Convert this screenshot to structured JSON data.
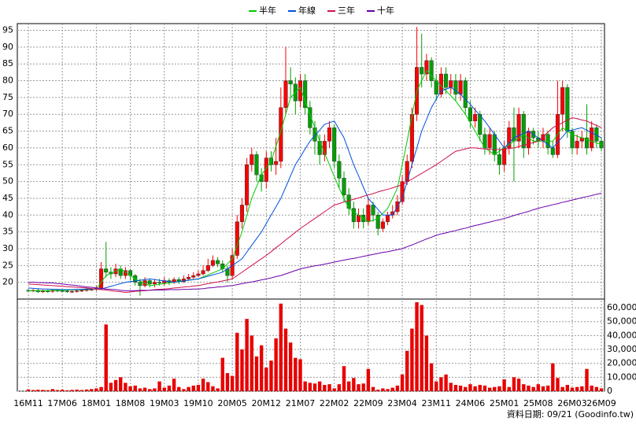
{
  "chart_data": {
    "type": "candlestick",
    "legend_position": "top",
    "grid": true,
    "up_color": "#ff0000",
    "down_color": "#00a000",
    "note": "資料日期: 09/21  (Goodinfo.tw)",
    "categories": [
      "16M11",
      null,
      null,
      null,
      null,
      null,
      null,
      "17M06",
      null,
      null,
      null,
      null,
      null,
      null,
      "18M01",
      null,
      null,
      null,
      null,
      null,
      null,
      "18M08",
      null,
      null,
      null,
      null,
      null,
      null,
      "19M03",
      null,
      null,
      null,
      null,
      null,
      null,
      "19M10",
      null,
      null,
      null,
      null,
      null,
      null,
      "20M05",
      null,
      null,
      null,
      null,
      null,
      null,
      "20M12",
      null,
      null,
      null,
      null,
      null,
      null,
      "21M07",
      null,
      null,
      null,
      null,
      null,
      null,
      "22M02",
      null,
      null,
      null,
      null,
      null,
      null,
      "22M09",
      null,
      null,
      null,
      null,
      null,
      null,
      "23M04",
      null,
      null,
      null,
      null,
      null,
      null,
      "23M11",
      null,
      null,
      null,
      null,
      null,
      null,
      "24M06",
      null,
      null,
      null,
      null,
      null,
      null,
      "25M01",
      null,
      null,
      null,
      null,
      null,
      null,
      "25M08",
      null,
      null,
      null,
      null,
      null,
      null,
      "26M03",
      null,
      null,
      null,
      null,
      null,
      "26M09"
    ],
    "ylim": [
      15,
      97
    ],
    "yticks": [
      20,
      25,
      30,
      35,
      40,
      45,
      50,
      55,
      60,
      65,
      70,
      75,
      80,
      85,
      90,
      95
    ],
    "open": [
      17.6,
      17.5,
      17.6,
      17.2,
      17.4,
      17.3,
      17.6,
      17.5,
      17.4,
      17.2,
      17.3,
      17.5,
      17.6,
      17.8,
      17.9,
      18.2,
      24,
      23,
      22.5,
      24,
      22,
      23.5,
      22,
      20,
      19,
      20.5,
      19.5,
      20,
      19.8,
      20.5,
      20,
      20.8,
      20.2,
      21,
      21.5,
      22,
      22.5,
      23.5,
      25,
      26.5,
      25.5,
      24,
      22,
      28,
      38,
      43,
      55,
      58,
      52,
      50,
      57,
      55,
      56,
      72,
      80,
      79,
      74,
      80,
      72,
      66,
      62,
      58,
      62,
      66,
      56,
      51,
      46,
      42,
      38,
      40,
      38,
      43,
      40,
      36,
      38,
      40,
      41,
      44,
      50,
      56,
      70,
      84,
      82,
      86,
      80,
      76,
      82,
      78,
      80,
      76,
      80,
      72,
      68,
      70,
      64,
      60,
      64,
      58,
      55,
      60,
      66,
      62,
      70,
      60,
      65,
      63,
      62,
      64,
      60,
      58,
      70,
      78,
      65,
      60,
      62,
      63,
      60,
      66,
      62
    ],
    "high": [
      18,
      18,
      18,
      17.8,
      17.8,
      18,
      18,
      17.9,
      17.8,
      17.7,
      17.9,
      18,
      18.2,
      18.3,
      19,
      26,
      32,
      24.5,
      25.5,
      25,
      24.5,
      24,
      22.5,
      21,
      21.5,
      21,
      21,
      21,
      21.5,
      21.2,
      21.5,
      21.5,
      22,
      22.5,
      23,
      23.5,
      25,
      27,
      28,
      27.5,
      26.5,
      25,
      30,
      40,
      45,
      57,
      60,
      59,
      54,
      59,
      59,
      63,
      78,
      90,
      84,
      81,
      82,
      82,
      74,
      68,
      64,
      64,
      68,
      67,
      58,
      53,
      48,
      44,
      42,
      42,
      45,
      44,
      41,
      39,
      41,
      43,
      46,
      52,
      58,
      72,
      96,
      94,
      88,
      87,
      82,
      84,
      84,
      82,
      82,
      82,
      81,
      74,
      72,
      71,
      66,
      66,
      65,
      60,
      62,
      68,
      72,
      72,
      71,
      66,
      66,
      65,
      66,
      65,
      62,
      80,
      80,
      79,
      66,
      64,
      65,
      73,
      68,
      67,
      63
    ],
    "low": [
      17.1,
      17.1,
      16.8,
      16.8,
      16.9,
      16.9,
      17.1,
      17,
      16.8,
      16.8,
      16.9,
      17.1,
      17.2,
      17.4,
      17.4,
      17.8,
      21.5,
      21,
      21.5,
      21,
      21,
      20.5,
      19,
      16,
      18.5,
      18.5,
      18.5,
      19,
      19,
      19.2,
      19.5,
      19.5,
      19.8,
      20.5,
      21,
      21.5,
      22,
      23,
      24.5,
      24.5,
      23,
      20,
      21,
      27,
      36,
      41,
      53,
      50,
      47,
      48,
      53,
      52,
      54,
      70,
      75,
      70,
      72,
      70,
      64,
      58,
      55,
      56,
      60,
      54,
      48,
      44,
      40,
      36,
      36,
      36,
      37,
      38,
      34,
      35,
      37,
      39,
      40,
      43,
      49,
      54,
      68,
      78,
      80,
      78,
      74,
      75,
      76,
      76,
      74,
      74,
      70,
      66,
      66,
      62,
      58,
      58,
      56,
      52,
      53,
      58,
      50,
      60,
      57,
      58,
      61,
      60,
      60,
      58,
      57,
      57,
      65,
      63,
      58,
      58,
      60,
      58,
      59,
      60,
      59
    ],
    "close": [
      17.5,
      17.6,
      17.2,
      17.4,
      17.3,
      17.6,
      17.5,
      17.4,
      17.2,
      17.3,
      17.5,
      17.6,
      17.8,
      17.9,
      18.2,
      24,
      23,
      22.5,
      24,
      22,
      23.5,
      22,
      20,
      19,
      20.5,
      19.5,
      20,
      19.8,
      20.5,
      20,
      20.8,
      20.2,
      21,
      21.5,
      22,
      22.5,
      23.5,
      25,
      26.5,
      25.5,
      24,
      22,
      28,
      38,
      43,
      55,
      58,
      52,
      50,
      57,
      55,
      56,
      72,
      80,
      79,
      74,
      80,
      72,
      66,
      62,
      58,
      62,
      66,
      56,
      51,
      46,
      42,
      38,
      40,
      38,
      43,
      40,
      36,
      38,
      40,
      41,
      44,
      50,
      56,
      70,
      84,
      82,
      86,
      80,
      76,
      82,
      78,
      80,
      76,
      80,
      72,
      68,
      70,
      64,
      60,
      64,
      58,
      55,
      60,
      66,
      62,
      70,
      60,
      65,
      63,
      62,
      64,
      60,
      58,
      70,
      78,
      65,
      60,
      62,
      63,
      60,
      66,
      62,
      60
    ],
    "series": [
      {
        "name": "半年",
        "color": "#00cc00",
        "values": [
          17.5,
          17.5,
          17.5,
          17.5,
          17.5,
          17.6,
          17.6,
          17.6,
          17.7,
          17.7,
          17.8,
          17.8,
          17.9,
          17.9,
          18,
          20,
          22,
          22.7,
          23.3,
          24,
          23,
          22,
          21,
          20.3,
          19.7,
          19,
          19.2,
          19.4,
          19.6,
          19.8,
          20,
          20.2,
          20.4,
          20.6,
          20.8,
          21,
          21.6,
          22.2,
          22.8,
          23.4,
          24,
          25.5,
          27,
          31,
          35,
          40,
          45,
          48.5,
          52,
          54,
          56,
          60.5,
          65,
          70,
          75,
          76.5,
          78,
          74,
          70,
          66,
          62,
          58.5,
          55,
          51.5,
          48,
          45,
          42,
          41,
          40,
          39,
          38,
          38.5,
          39,
          40.5,
          42,
          45,
          48,
          55,
          62,
          69.5,
          77,
          80,
          83,
          81.5,
          80,
          78.5,
          77,
          75.5,
          74,
          72,
          70,
          67.5,
          65,
          62.5,
          60,
          59,
          58,
          59,
          60,
          61,
          62,
          63,
          64,
          63,
          62,
          62,
          62,
          62,
          62,
          64,
          66,
          65,
          64,
          63.5,
          63,
          62.5,
          62,
          61.5,
          61
        ]
      },
      {
        "name": "年線",
        "color": "#0050e0",
        "values": [
          18.3,
          18.2,
          18.1,
          18,
          18,
          17.9,
          17.9,
          17.8,
          17.8,
          17.8,
          17.9,
          17.9,
          18,
          18,
          18,
          18,
          18.4,
          18.8,
          19.2,
          19.6,
          20,
          20.2,
          20.4,
          20.6,
          20.8,
          21,
          20.8,
          20.6,
          20.4,
          20.2,
          20,
          20.2,
          20.4,
          20.6,
          20.8,
          21,
          21.4,
          21.8,
          22.2,
          22.6,
          23,
          24,
          25,
          26,
          27,
          29,
          31,
          33,
          35,
          37.5,
          40,
          42.5,
          45,
          48.3,
          51.7,
          55,
          57.3,
          59.7,
          62,
          63.7,
          65.3,
          67,
          67.5,
          68,
          65.5,
          63,
          59,
          55,
          51.7,
          48.3,
          45,
          43.3,
          41.7,
          40,
          40,
          40,
          42.5,
          45,
          50,
          55,
          60,
          65,
          68.5,
          72,
          74.5,
          77,
          77.5,
          78,
          77,
          76,
          74.5,
          73,
          71.3,
          69.7,
          68,
          66,
          64,
          62,
          60,
          61.5,
          63,
          63.7,
          64.3,
          65,
          64,
          63,
          62,
          61,
          60,
          61.7,
          63.3,
          65,
          65.3,
          65.7,
          66,
          65.3,
          64.5,
          63.8,
          63
        ]
      },
      {
        "name": "三年",
        "color": "#d0104c",
        "values": [
          19.5,
          19.4,
          19.3,
          19.2,
          19.1,
          19,
          18.9,
          18.8,
          18.7,
          18.6,
          18.5,
          18.4,
          18.3,
          18.1,
          18,
          17.8,
          17.7,
          17.5,
          17.3,
          17.2,
          17,
          17.1,
          17.3,
          17.4,
          17.5,
          17.6,
          17.8,
          17.9,
          18,
          18.1,
          18.3,
          18.4,
          18.6,
          18.7,
          18.9,
          19,
          19.3,
          19.6,
          19.9,
          20.1,
          20.4,
          20.7,
          21,
          22,
          23,
          24,
          25,
          26,
          27,
          28,
          29.1,
          30.3,
          31.4,
          32.6,
          33.7,
          34.9,
          36,
          37,
          38,
          39,
          40,
          41,
          42,
          43,
          43.4,
          43.9,
          44.3,
          44.7,
          45.1,
          45.6,
          46,
          46.4,
          46.9,
          47.3,
          47.7,
          48.1,
          48.6,
          49,
          49.9,
          50.7,
          51.6,
          52.4,
          53.3,
          54.1,
          55,
          56,
          57,
          58,
          59,
          59.3,
          59.7,
          60,
          60,
          59.8,
          59.7,
          59.6,
          59.5,
          59.5,
          59.6,
          59.8,
          60,
          60.4,
          60.8,
          61.2,
          61.6,
          62,
          63.3,
          64.7,
          66,
          66.8,
          67.5,
          68.3,
          69,
          68.7,
          68.3,
          68,
          67.3,
          66.7,
          66
        ]
      },
      {
        "name": "十年",
        "color": "#6a00a8",
        "values": [
          20,
          20,
          19.9,
          19.9,
          19.8,
          19.8,
          19.6,
          19.5,
          19.3,
          19.2,
          19,
          18.8,
          18.6,
          18.5,
          18.3,
          18.2,
          18,
          17.9,
          17.8,
          17.6,
          17.5,
          17.5,
          17.5,
          17.6,
          17.6,
          17.6,
          17.7,
          17.7,
          17.7,
          17.8,
          17.8,
          17.8,
          17.9,
          17.9,
          18,
          18,
          18.1,
          18.3,
          18.4,
          18.6,
          18.7,
          18.9,
          19,
          19.3,
          19.6,
          19.9,
          20.1,
          20.4,
          20.7,
          21,
          21.3,
          21.7,
          22,
          22.5,
          23,
          23.5,
          24,
          24.3,
          24.6,
          24.9,
          25.1,
          25.4,
          25.7,
          26,
          26.3,
          26.6,
          26.9,
          27.1,
          27.4,
          27.7,
          28,
          28.3,
          28.6,
          28.9,
          29.1,
          29.4,
          29.7,
          30,
          30.6,
          31.1,
          31.7,
          32.3,
          32.9,
          33.4,
          34,
          34.4,
          34.7,
          35.1,
          35.4,
          35.8,
          36.1,
          36.5,
          36.9,
          37.2,
          37.6,
          37.9,
          38.3,
          38.6,
          39,
          39.4,
          39.9,
          40.3,
          40.7,
          41.1,
          41.6,
          42,
          42.4,
          42.7,
          43.1,
          43.4,
          43.8,
          44.1,
          44.5,
          44.8,
          45.2,
          45.5,
          45.8,
          46.2,
          46.5
        ]
      }
    ],
    "volume": {
      "color": "#e80000",
      "ylim": [
        0,
        64000
      ],
      "yticks": [
        0,
        {
          "value": 10000,
          "label": "10,000"
        },
        {
          "value": 20000,
          "label": "20,000"
        },
        {
          "value": 30000,
          "label": "30,000"
        },
        {
          "value": 40000,
          "label": "40,000"
        },
        {
          "value": 50000,
          "label": "50,000"
        },
        {
          "value": 60000,
          "label": "60,000"
        }
      ],
      "values": [
        1200,
        800,
        1000,
        900,
        700,
        1500,
        800,
        1000,
        600,
        900,
        1100,
        800,
        1200,
        1500,
        2000,
        3000,
        48000,
        6000,
        8000,
        10000,
        6000,
        3500,
        4000,
        2000,
        2500,
        1500,
        2000,
        7000,
        2500,
        4000,
        9000,
        3000,
        1500,
        3000,
        4000,
        4500,
        9000,
        6500,
        3500,
        2000,
        24000,
        13000,
        11000,
        42000,
        30000,
        52000,
        40000,
        25000,
        33000,
        17000,
        22000,
        38000,
        63000,
        45000,
        35000,
        24000,
        23000,
        7000,
        6000,
        5500,
        7000,
        4500,
        5000,
        2000,
        5000,
        18000,
        7000,
        9500,
        5000,
        5500,
        16000,
        3000,
        1000,
        2000,
        1500,
        2500,
        4000,
        12000,
        29000,
        45000,
        64000,
        62000,
        40000,
        20000,
        7000,
        10000,
        12000,
        6000,
        4500,
        4000,
        3000,
        5000,
        3500,
        4500,
        4000,
        2500,
        3000,
        3500,
        8500,
        3000,
        10000,
        9000,
        5000,
        4000,
        3000,
        5000,
        3500,
        4000,
        20000,
        9500,
        3000,
        4500,
        2500,
        3000,
        3500,
        16000,
        4000,
        3000,
        2000
      ]
    }
  }
}
